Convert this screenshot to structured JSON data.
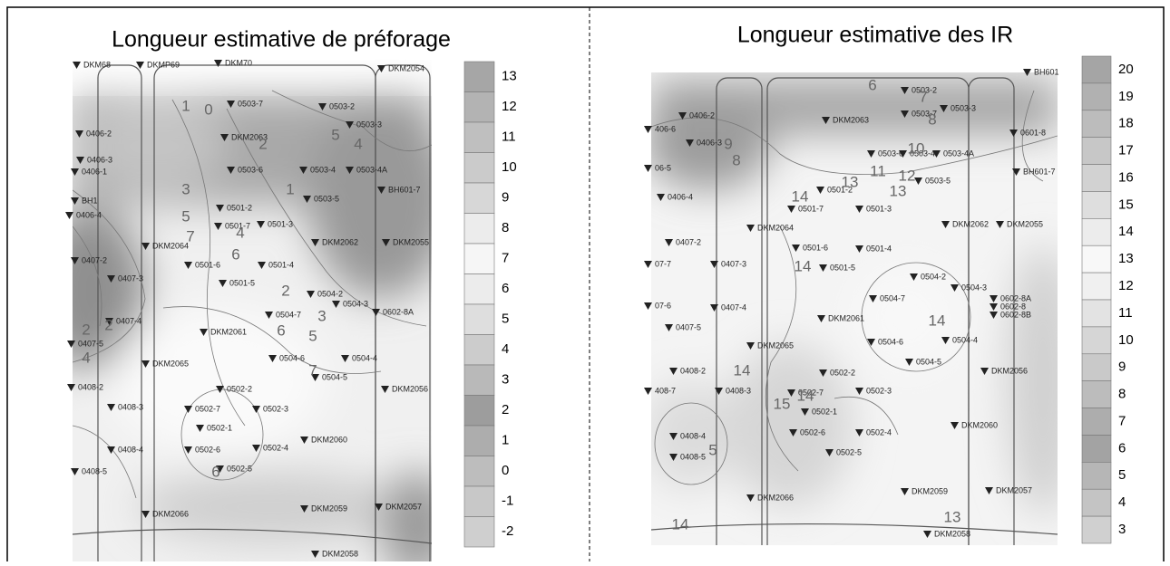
{
  "figure": {
    "panels": [
      {
        "title": "Longueur estimative de préforage",
        "legend": [
          13,
          12,
          11,
          10,
          9,
          8,
          7,
          6,
          5,
          4,
          3,
          2,
          1,
          0,
          -1,
          -2
        ],
        "stations": [
          "DKM68",
          "DKMP69",
          "DKM70",
          "DKM2054",
          "0406-2",
          "0503-7",
          "0503-2",
          "DKM2063",
          "0503-3",
          "0406-3",
          "0406-1",
          "0503-6",
          "0503-4",
          "0503-4A",
          "BH601-7",
          "0503-5",
          "BH1",
          "0406-4",
          "0501-2",
          "0501-7",
          "0501-3",
          "DKM2064",
          "DKM2062",
          "DKM2055",
          "0407-2",
          "0501-6",
          "0501-4",
          "0407-3",
          "0501-5",
          "0504-2",
          "0504-3",
          "0602-8A",
          "0504-7",
          "0407-4",
          "DKM2061",
          "0407-5",
          "DKM2065",
          "0504-6",
          "0504-4",
          "0504-5",
          "DKM2056",
          "0408-2",
          "0502-2",
          "0408-3",
          "0502-7",
          "0502-3",
          "0502-1",
          "0408-4",
          "DKM2060",
          "0502-6",
          "0502-4",
          "0502-5",
          "0408-5",
          "DKM2066",
          "DKM2059",
          "DKM2057",
          "DKM2058"
        ],
        "contour_labels": [
          1,
          0,
          2,
          5,
          4,
          3,
          2,
          1,
          5,
          7,
          6,
          4,
          2,
          3,
          5,
          2,
          4,
          6,
          7,
          6
        ]
      },
      {
        "title": "Longueur estimative des IR",
        "legend": [
          20,
          19,
          18,
          17,
          16,
          15,
          14,
          13,
          12,
          11,
          10,
          9,
          8,
          7,
          6,
          5,
          4,
          3
        ],
        "stations": [
          "BH601",
          "0503-2",
          "0406-2",
          "DKM2063",
          "0503-7",
          "0503-3",
          "0601-8",
          "406-6",
          "0406-3",
          "0503-6",
          "0503-4",
          "0503-4A",
          "BH601-7",
          "06-5",
          "0503-5",
          "0501-2",
          "0406-4",
          "0501-7",
          "0501-3",
          "DKM2064",
          "DKM2062",
          "DKM2055",
          "0407-2",
          "0501-6",
          "0501-4",
          "07-7",
          "0407-3",
          "0501-5",
          "0504-2",
          "0504-3",
          "0504-7",
          "0602-8A",
          "0602-8",
          "0602-8B",
          "07-6",
          "0407-4",
          "DKM2061",
          "0407-5",
          "DKM2065",
          "0504-6",
          "0504-4",
          "0504-5",
          "DKM2056",
          "0408-2",
          "0502-2",
          "408-7",
          "0408-3",
          "0502-7",
          "0502-3",
          "0502-1",
          "DKM2060",
          "0408-4",
          "0502-6",
          "0502-4",
          "0408-5",
          "0502-5",
          "DKM2066",
          "DKM2059",
          "DKM2057",
          "DKM2058"
        ],
        "contour_labels": [
          6,
          9,
          8,
          7,
          8,
          10,
          11,
          13,
          12,
          13,
          14,
          14,
          14,
          14,
          15,
          14,
          5,
          14,
          13
        ]
      }
    ]
  }
}
